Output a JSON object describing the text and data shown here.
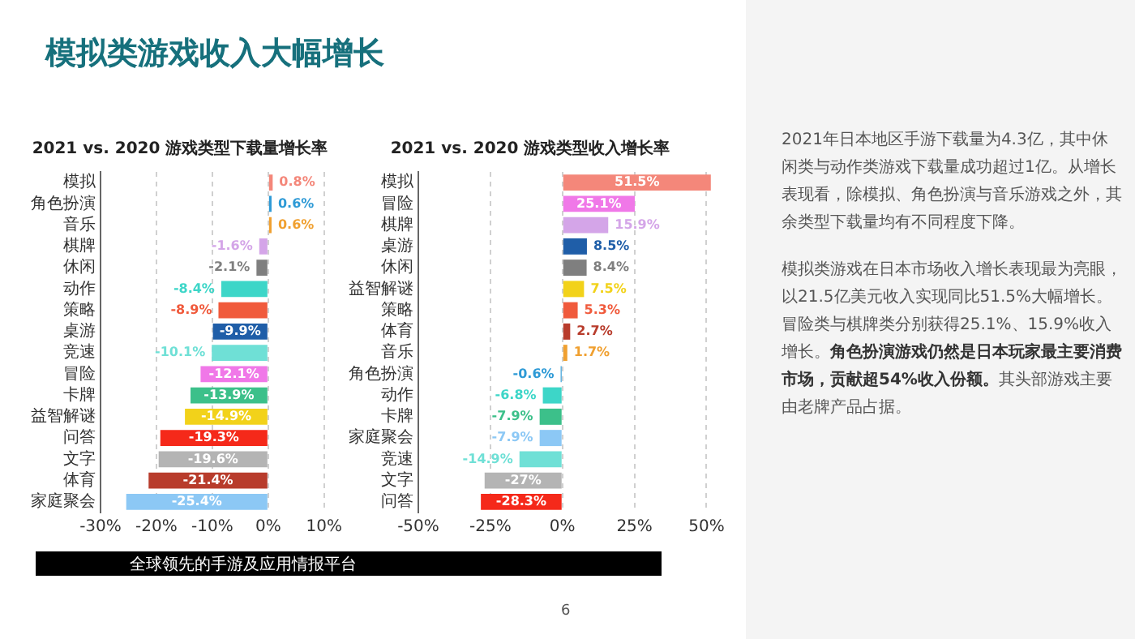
{
  "chart_data": [
    {
      "type": "other",
      "title": "模拟类游戏收入大幅增长",
      "annotations": [
        "2021年日本地区手游下载量为4.3亿，其中休闲类与动作类游戏下载量成功超过1亿。从增长表现看，除模拟、角色扮演与音乐游戏之外，其余类型下载量均有不同程度下降。",
        "模拟类游戏在日本市场收入增长表现最为亮眼，以21.5亿美元收入实现同比51.5%大幅增长。冒险类与棋牌类分别获得25.1%、15.9%收入增长。",
        "角色扮演游戏仍然是日本玩家最主要消费市场，贡献超54%收入份额。",
        "其头部游戏主要由老牌产品占据。",
        "全球领先的手游及应用情报平台",
        "6"
      ]
    },
    {
      "type": "bar",
      "orientation": "horizontal",
      "title": "2021 vs. 2020 游戏类型下载量增长率",
      "categories": [
        "模拟",
        "角色扮演",
        "音乐",
        "棋牌",
        "休闲",
        "动作",
        "策略",
        "桌游",
        "竞速",
        "冒险",
        "卡牌",
        "益智解谜",
        "问答",
        "文字",
        "体育",
        "家庭聚会"
      ],
      "values": [
        0.8,
        0.6,
        0.6,
        -1.6,
        -2.1,
        -8.4,
        -8.9,
        -9.9,
        -10.1,
        -12.1,
        -13.9,
        -14.9,
        -19.3,
        -19.6,
        -21.4,
        -25.4
      ],
      "value_labels": [
        "0.8%",
        "0.6%",
        "0.6%",
        "-1.6%",
        "-2.1%",
        "-8.4%",
        "-8.9%",
        "-9.9%",
        "-10.1%",
        "-12.1%",
        "-13.9%",
        "-14.9%",
        "-19.3%",
        "-19.6%",
        "-21.4%",
        "-25.4%"
      ],
      "colors": [
        "#f4877a",
        "#2e9ad6",
        "#f0a030",
        "#d4a5e8",
        "#7f7f7f",
        "#3dd6c8",
        "#f05a3c",
        "#1f5ea8",
        "#6fe0d6",
        "#f078e8",
        "#3cc08a",
        "#f2d21a",
        "#f5291a",
        "#b4b4b4",
        "#b83c2c",
        "#8cc8f5"
      ],
      "xlim": [
        -30,
        10
      ],
      "xticks": [
        {
          "value": -30,
          "label": "-30%"
        },
        {
          "value": -20,
          "label": "-20%"
        },
        {
          "value": -10,
          "label": "-10%"
        },
        {
          "value": 0,
          "label": "0%"
        },
        {
          "value": 10,
          "label": "10%"
        }
      ],
      "grid": "x"
    },
    {
      "type": "bar",
      "orientation": "horizontal",
      "title": "2021 vs. 2020 游戏类型收入增长率",
      "categories": [
        "模拟",
        "冒险",
        "棋牌",
        "桌游",
        "休闲",
        "益智解谜",
        "策略",
        "体育",
        "音乐",
        "角色扮演",
        "动作",
        "卡牌",
        "家庭聚会",
        "竞速",
        "文字",
        "问答"
      ],
      "values": [
        51.5,
        25.1,
        15.9,
        8.5,
        8.4,
        7.5,
        5.3,
        2.7,
        1.7,
        -0.6,
        -6.8,
        -7.9,
        -7.9,
        -14.9,
        -27,
        -28.3
      ],
      "value_labels": [
        "51.5%",
        "25.1%",
        "15.9%",
        "8.5%",
        "8.4%",
        "7.5%",
        "5.3%",
        "2.7%",
        "1.7%",
        "-0.6%",
        "-6.8%",
        "-7.9%",
        "-7.9%",
        "-14.9%",
        "-27%",
        "-28.3%"
      ],
      "colors": [
        "#f4877a",
        "#f078e8",
        "#d4a5e8",
        "#1f5ea8",
        "#7f7f7f",
        "#f2d21a",
        "#f05a3c",
        "#b83c2c",
        "#f0a030",
        "#2e9ad6",
        "#3dd6c8",
        "#3cc08a",
        "#8cc8f5",
        "#6fe0d6",
        "#b4b4b4",
        "#f5291a"
      ],
      "xlim": [
        -50,
        52
      ],
      "xticks": [
        {
          "value": -50,
          "label": "-50%"
        },
        {
          "value": -25,
          "label": "-25%"
        },
        {
          "value": 0,
          "label": "0%"
        },
        {
          "value": 25,
          "label": "25%"
        },
        {
          "value": 50,
          "label": "50%"
        }
      ],
      "grid": "x"
    }
  ]
}
